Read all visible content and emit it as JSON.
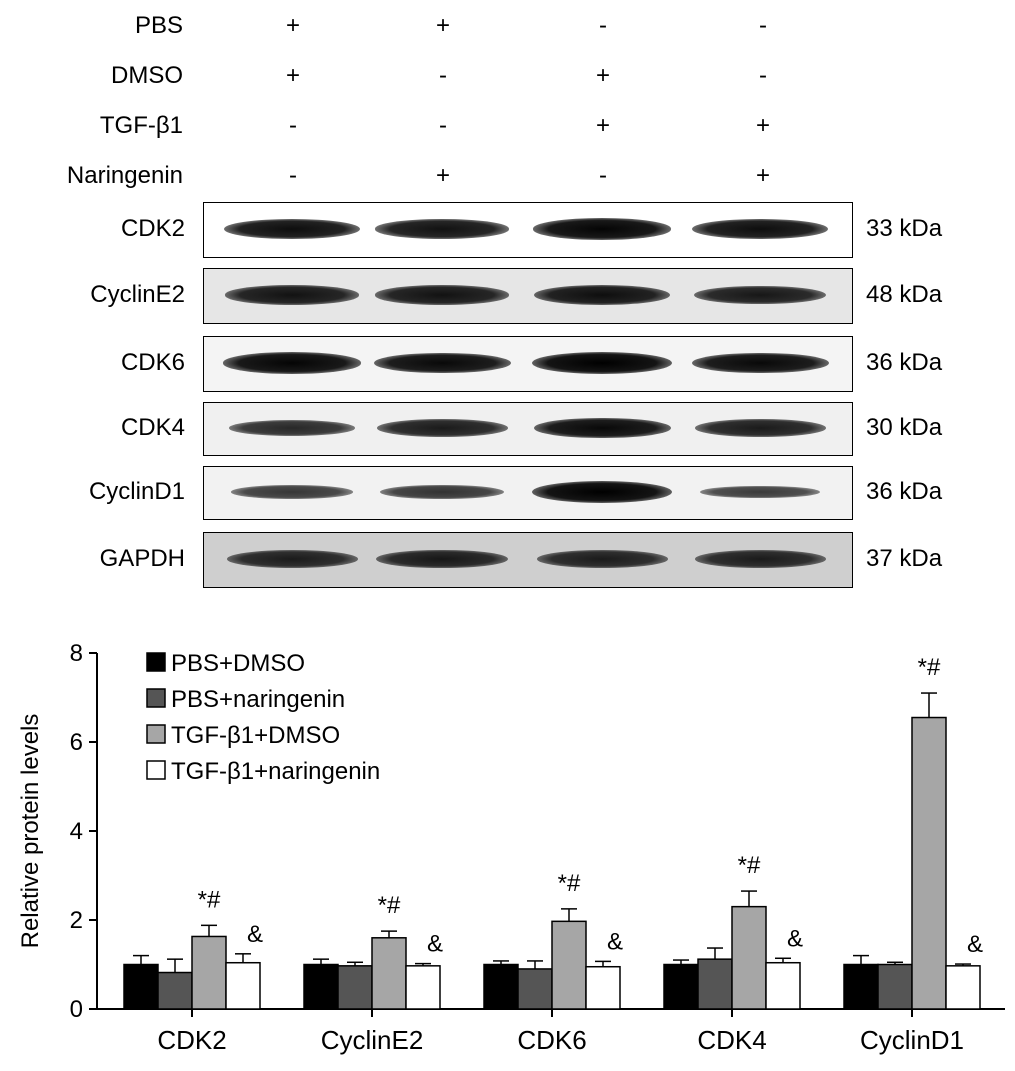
{
  "conditions": [
    {
      "name": "PBS",
      "signs": [
        "+",
        "+",
        "-",
        "-"
      ]
    },
    {
      "name": "DMSO",
      "signs": [
        "+",
        "-",
        "+",
        "-"
      ]
    },
    {
      "name": "TGF-β1",
      "signs": [
        "-",
        "-",
        "+",
        "+"
      ]
    },
    {
      "name": "Naringenin",
      "signs": [
        "-",
        "+",
        "-",
        "+"
      ]
    }
  ],
  "blots": [
    {
      "protein": "CDK2",
      "mw": "33 kDa",
      "background": "#ffffff",
      "intensity": [
        0.85,
        0.8,
        0.95,
        0.85
      ]
    },
    {
      "protein": "CyclinE2",
      "mw": "48 kDa",
      "background": "#e6e6e6",
      "intensity": [
        0.8,
        0.8,
        0.85,
        0.75
      ]
    },
    {
      "protein": "CDK6",
      "mw": "36 kDa",
      "background": "#f4f4f4",
      "intensity": [
        0.95,
        0.9,
        1.0,
        0.9
      ]
    },
    {
      "protein": "CDK4",
      "mw": "30 kDa",
      "background": "#f0f0f0",
      "intensity": [
        0.55,
        0.7,
        0.9,
        0.7
      ]
    },
    {
      "protein": "CyclinD1",
      "mw": "36 kDa",
      "background": "#f2f2f2",
      "intensity": [
        0.4,
        0.45,
        1.0,
        0.35
      ]
    },
    {
      "protein": "GAPDH",
      "mw": "37 kDa",
      "background": "#cfcfcf",
      "intensity": [
        0.7,
        0.75,
        0.7,
        0.7
      ]
    }
  ],
  "chart_data": {
    "type": "bar",
    "ylabel": "Relative protein levels",
    "ylim": [
      0,
      8
    ],
    "yticks": [
      "0",
      "2",
      "4",
      "6",
      "8"
    ],
    "categories": [
      "CDK2",
      "CyclinE2",
      "CDK6",
      "CDK4",
      "CyclinD1"
    ],
    "legend_position": "top-left",
    "series": [
      {
        "name": "PBS+DMSO",
        "color": "#000000",
        "values": [
          1.0,
          1.0,
          1.0,
          1.0,
          1.0
        ],
        "errors": [
          0.2,
          0.12,
          0.08,
          0.1,
          0.2
        ],
        "annotations": [
          "",
          "",
          "",
          "",
          ""
        ]
      },
      {
        "name": "PBS+naringenin",
        "color": "#555555",
        "values": [
          0.82,
          0.97,
          0.9,
          1.12,
          1.0
        ],
        "errors": [
          0.3,
          0.08,
          0.18,
          0.25,
          0.05
        ],
        "annotations": [
          "",
          "",
          "",
          "",
          ""
        ]
      },
      {
        "name": "TGF-β1+DMSO",
        "color": "#a6a6a6",
        "values": [
          1.63,
          1.6,
          1.97,
          2.3,
          6.55
        ],
        "errors": [
          0.25,
          0.15,
          0.28,
          0.35,
          0.55
        ],
        "annotations": [
          "*#",
          "*#",
          "*#",
          "*#",
          "*#"
        ]
      },
      {
        "name": "TGF-β1+naringenin",
        "color": "#ffffff",
        "values": [
          1.04,
          0.97,
          0.95,
          1.04,
          0.97
        ],
        "errors": [
          0.2,
          0.05,
          0.12,
          0.1,
          0.04
        ],
        "annotations": [
          "&",
          "&",
          "&",
          "&",
          "&"
        ]
      }
    ]
  }
}
